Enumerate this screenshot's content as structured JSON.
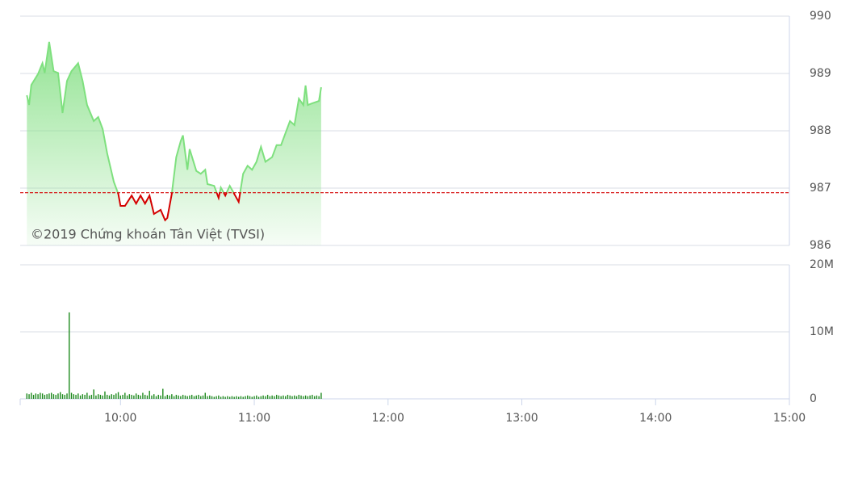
{
  "chart_data": [
    {
      "type": "line",
      "annotation": "©2019 Chứng khoán Tân Việt (TVSI)",
      "x": [
        558,
        559,
        560,
        563,
        565,
        566,
        568,
        570,
        572,
        574,
        576,
        578,
        581,
        583,
        585,
        588,
        590,
        592,
        594,
        597,
        599,
        600,
        602,
        605,
        607,
        609,
        611,
        613,
        615,
        618,
        620,
        621,
        623,
        625,
        627,
        628,
        630,
        631,
        634,
        636,
        638,
        639,
        642,
        644,
        645,
        647,
        649,
        652,
        653,
        655,
        657,
        659,
        661,
        663,
        665,
        668,
        670,
        672,
        674,
        676,
        678,
        680,
        682,
        683,
        684,
        686,
        689,
        690
      ],
      "series": [
        {
          "color": "#7ee07e",
          "below_color": "#d40000",
          "values": [
            988.62,
            988.45,
            988.8,
            988.99,
            989.18,
            989.01,
            989.55,
            989.04,
            989.01,
            988.31,
            988.87,
            989.04,
            989.18,
            988.87,
            988.45,
            988.17,
            988.24,
            988.03,
            987.61,
            987.11,
            986.9,
            986.69,
            986.69,
            986.87,
            986.73,
            986.87,
            986.73,
            986.87,
            986.55,
            986.62,
            986.44,
            986.48,
            986.9,
            987.54,
            987.82,
            987.92,
            987.32,
            987.68,
            987.3,
            987.25,
            987.32,
            987.07,
            987.04,
            986.83,
            987.01,
            986.87,
            987.04,
            986.83,
            986.76,
            987.25,
            987.39,
            987.32,
            987.46,
            987.72,
            987.46,
            987.54,
            987.75,
            987.75,
            987.96,
            988.17,
            988.1,
            988.56,
            988.45,
            988.79,
            988.45,
            988.48,
            988.52,
            988.76
          ]
        }
      ],
      "reference": 986.92,
      "reference_color": "#d40000",
      "xlim": [
        555,
        900
      ],
      "ylim": [
        986,
        990
      ],
      "yticks": [
        986,
        987,
        988,
        989,
        990
      ],
      "grid": true
    },
    {
      "type": "bar",
      "x": [
        558,
        559,
        560,
        561,
        562,
        563,
        564,
        565,
        566,
        567,
        568,
        569,
        570,
        571,
        572,
        573,
        574,
        575,
        576,
        577,
        578,
        579,
        580,
        581,
        582,
        583,
        584,
        585,
        586,
        587,
        588,
        589,
        590,
        591,
        592,
        593,
        594,
        595,
        596,
        597,
        598,
        599,
        600,
        601,
        602,
        603,
        604,
        605,
        606,
        607,
        608,
        609,
        610,
        611,
        612,
        613,
        614,
        615,
        616,
        617,
        618,
        619,
        620,
        621,
        622,
        623,
        624,
        625,
        626,
        627,
        628,
        629,
        630,
        631,
        632,
        633,
        634,
        635,
        636,
        637,
        638,
        639,
        640,
        641,
        642,
        643,
        644,
        645,
        646,
        647,
        648,
        649,
        650,
        651,
        652,
        653,
        654,
        655,
        656,
        657,
        658,
        659,
        660,
        661,
        662,
        663,
        664,
        665,
        666,
        667,
        668,
        669,
        670,
        671,
        672,
        673,
        674,
        675,
        676,
        677,
        678,
        679,
        680,
        681,
        682,
        683,
        684,
        685,
        686,
        687,
        688,
        689,
        690
      ],
      "values": [
        0.8,
        0.7,
        0.9,
        0.6,
        0.8,
        0.7,
        0.9,
        0.8,
        0.6,
        0.7,
        0.8,
        0.9,
        0.7,
        0.6,
        0.8,
        1.0,
        0.7,
        0.6,
        0.8,
        12.9,
        0.9,
        0.7,
        0.6,
        0.8,
        0.5,
        0.7,
        0.6,
        0.9,
        0.5,
        0.6,
        1.4,
        0.5,
        0.7,
        0.6,
        0.5,
        1.1,
        0.6,
        0.5,
        0.7,
        0.6,
        0.8,
        1.0,
        0.5,
        0.6,
        0.9,
        0.5,
        0.7,
        0.6,
        0.5,
        0.8,
        0.6,
        0.5,
        0.9,
        0.6,
        0.5,
        1.2,
        0.5,
        0.7,
        0.4,
        0.6,
        0.5,
        1.5,
        0.4,
        0.6,
        0.5,
        0.7,
        0.4,
        0.6,
        0.5,
        0.4,
        0.6,
        0.5,
        0.4,
        0.5,
        0.6,
        0.4,
        0.5,
        0.6,
        0.4,
        0.5,
        0.9,
        0.4,
        0.5,
        0.4,
        0.3,
        0.4,
        0.5,
        0.3,
        0.4,
        0.3,
        0.4,
        0.3,
        0.4,
        0.3,
        0.4,
        0.3,
        0.4,
        0.3,
        0.4,
        0.5,
        0.4,
        0.3,
        0.4,
        0.5,
        0.3,
        0.4,
        0.5,
        0.4,
        0.6,
        0.4,
        0.5,
        0.4,
        0.6,
        0.5,
        0.4,
        0.5,
        0.4,
        0.6,
        0.5,
        0.4,
        0.5,
        0.4,
        0.6,
        0.5,
        0.4,
        0.5,
        0.4,
        0.5,
        0.6,
        0.4,
        0.5,
        0.4,
        0.9
      ],
      "color": "#1e8a1e",
      "xlim": [
        555,
        900
      ],
      "xticks": [
        {
          "value": 600,
          "label": "10:00"
        },
        {
          "value": 660,
          "label": "11:00"
        },
        {
          "value": 720,
          "label": "12:00"
        },
        {
          "value": 780,
          "label": "13:00"
        },
        {
          "value": 840,
          "label": "14:00"
        },
        {
          "value": 900,
          "label": "15:00"
        }
      ],
      "ylim": [
        0,
        20
      ],
      "yticks": [
        {
          "value": 0,
          "label": "0"
        },
        {
          "value": 10,
          "label": "10M"
        },
        {
          "value": 20,
          "label": "20M"
        }
      ],
      "grid": true
    }
  ]
}
